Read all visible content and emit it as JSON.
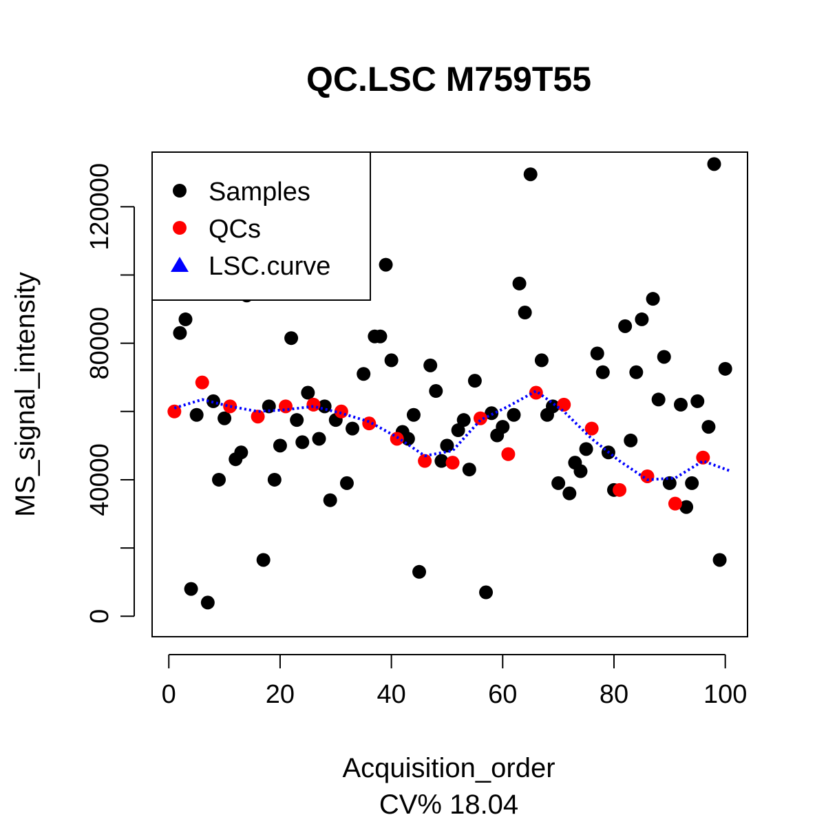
{
  "chart_data": {
    "type": "scatter",
    "title": "QC.LSC M759T55",
    "xlabel": "Acquisition_order",
    "subtitle": "CV% 18.04",
    "ylabel": "MS_signal_intensity",
    "xlim": [
      -3,
      104
    ],
    "ylim": [
      -6000,
      136000
    ],
    "x_ticks": [
      0,
      20,
      40,
      60,
      80,
      100
    ],
    "x_tick_labels": [
      "0",
      "20",
      "40",
      "60",
      "80",
      "100"
    ],
    "y_ticks": [
      0,
      40000,
      80000,
      120000
    ],
    "y_tick_labels": [
      "0",
      "40000",
      "80000",
      "120000"
    ],
    "y_minor_ticks": [
      20000,
      60000,
      100000
    ],
    "grid": false,
    "legend": {
      "position": "top-left",
      "entries": [
        {
          "label": "Samples",
          "color": "#000000",
          "symbol": "circle"
        },
        {
          "label": "QCs",
          "color": "#ff0000",
          "symbol": "circle"
        },
        {
          "label": "LSC.curve",
          "color": "#0000ff",
          "symbol": "triangle"
        }
      ]
    },
    "series": [
      {
        "name": "Samples",
        "color": "#000000",
        "x": [
          2,
          3,
          4,
          5,
          7,
          8,
          9,
          10,
          12,
          13,
          14,
          17,
          18,
          19,
          20,
          22,
          23,
          24,
          25,
          27,
          28,
          29,
          30,
          32,
          33,
          35,
          37,
          38,
          39,
          40,
          42,
          43,
          44,
          45,
          47,
          48,
          49,
          50,
          52,
          53,
          54,
          55,
          57,
          58,
          59,
          60,
          62,
          63,
          64,
          65,
          67,
          68,
          69,
          70,
          72,
          73,
          74,
          75,
          77,
          78,
          79,
          80,
          82,
          83,
          84,
          85,
          87,
          88,
          89,
          90,
          92,
          93,
          94,
          95,
          97,
          98,
          99,
          100
        ],
        "y": [
          83000,
          87000,
          8000,
          59000,
          4000,
          63000,
          40000,
          58000,
          46000,
          48000,
          94000,
          16500,
          61500,
          40000,
          50000,
          81500,
          57500,
          51000,
          65500,
          52000,
          61500,
          34000,
          57500,
          39000,
          55000,
          71000,
          82000,
          82000,
          103000,
          75000,
          54000,
          52000,
          59000,
          13000,
          73500,
          66000,
          45500,
          50000,
          54500,
          57500,
          43000,
          69000,
          7000,
          59500,
          53000,
          55500,
          59000,
          97500,
          89000,
          129500,
          75000,
          59000,
          61500,
          39000,
          36000,
          45000,
          42500,
          49000,
          77000,
          71500,
          48000,
          37000,
          85000,
          51500,
          71500,
          87000,
          93000,
          63500,
          76000,
          39000,
          62000,
          32000,
          39000,
          63000,
          55500,
          132500,
          16500,
          72500
        ]
      },
      {
        "name": "QCs",
        "color": "#ff0000",
        "x": [
          1,
          6,
          11,
          16,
          21,
          26,
          31,
          36,
          41,
          46,
          51,
          56,
          61,
          66,
          71,
          76,
          81,
          86,
          91,
          96
        ],
        "y": [
          60000,
          68500,
          61500,
          58500,
          61500,
          62000,
          60000,
          56500,
          52000,
          45500,
          45000,
          58000,
          47500,
          65500,
          62000,
          55000,
          37000,
          41000,
          33000,
          46500
        ]
      },
      {
        "name": "LSC.curve",
        "color": "#0000ff",
        "x": [
          1,
          6,
          11,
          16,
          21,
          26,
          31,
          36,
          41,
          46,
          51,
          56,
          61,
          66,
          71,
          76,
          81,
          86,
          91,
          96,
          101
        ],
        "y": [
          61000,
          63500,
          61500,
          60000,
          60500,
          61500,
          59500,
          57000,
          52500,
          47000,
          48500,
          57500,
          61500,
          66000,
          60000,
          52000,
          45500,
          40000,
          40500,
          45500,
          42500
        ]
      }
    ]
  }
}
